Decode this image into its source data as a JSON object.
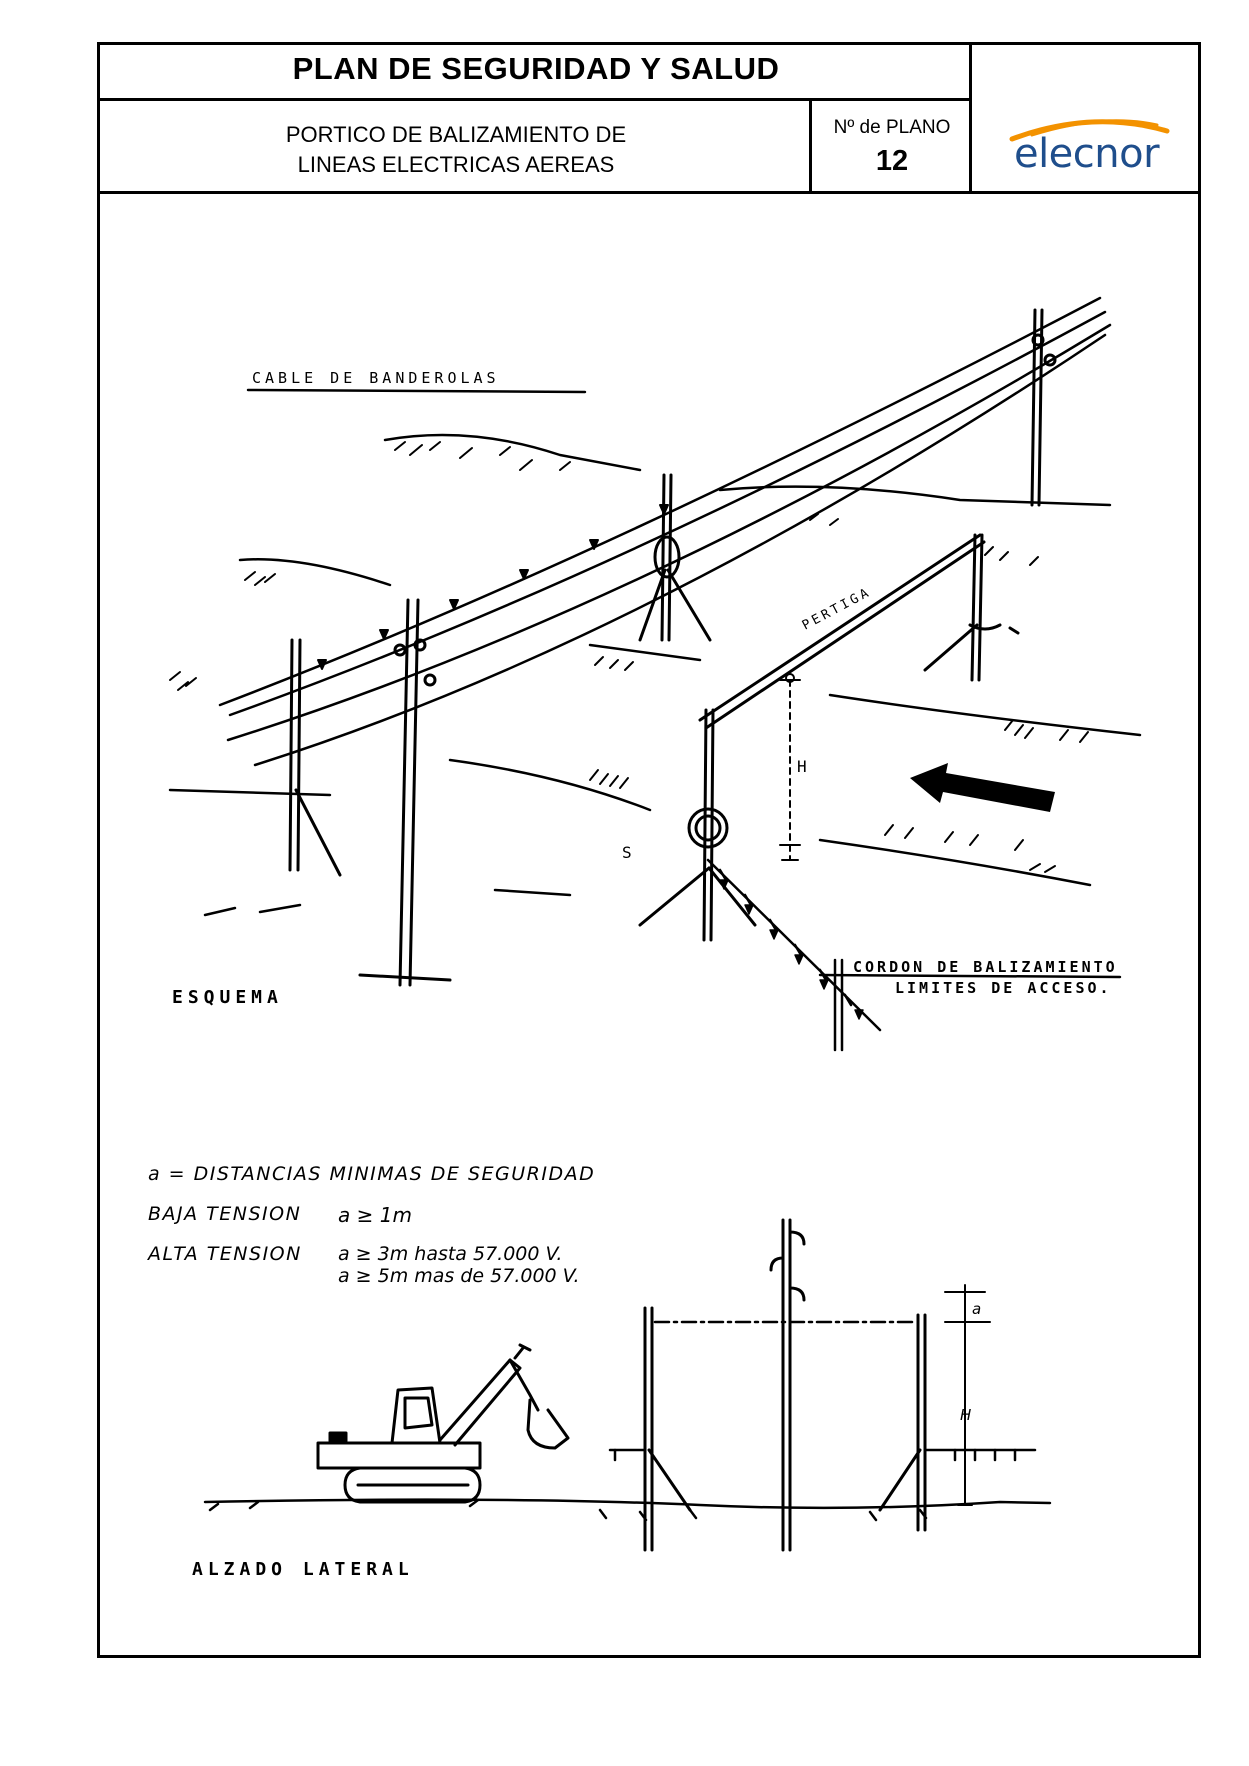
{
  "header": {
    "title": "PLAN DE SEGURIDAD Y SALUD",
    "subtitle_line1": "PORTICO DE BALIZAMIENTO DE",
    "subtitle_line2": "LINEAS ELECTRICAS AEREAS",
    "plano_label": "Nº de PLANO",
    "plano_number": "12",
    "logo_text": "elecnor",
    "logo_color": "#1f4e8c",
    "logo_swoosh_color": "#f39200"
  },
  "esquema": {
    "cable_label": "CABLE DE BANDEROLAS",
    "pertiga_label": "PERTIGA",
    "h_label": "H",
    "s_label": "S",
    "cordon_label_line1": "CORDON DE BALIZAMIENTO",
    "cordon_label_line2": "LIMITES DE ACCESO.",
    "section_label": "ESQUEMA"
  },
  "alzado": {
    "distancias_title": "a = DISTANCIAS MINIMAS DE SEGURIDAD",
    "baja_label": "BAJA TENSION",
    "baja_value": "a ≥ 1m",
    "alta_label": "ALTA TENSION",
    "alta_value_1": "a ≥ 3m hasta 57.000 V.",
    "alta_value_2": "a ≥ 5m mas de 57.000 V.",
    "a_label": "a",
    "h_label": "H",
    "section_label": "ALZADO LATERAL"
  }
}
